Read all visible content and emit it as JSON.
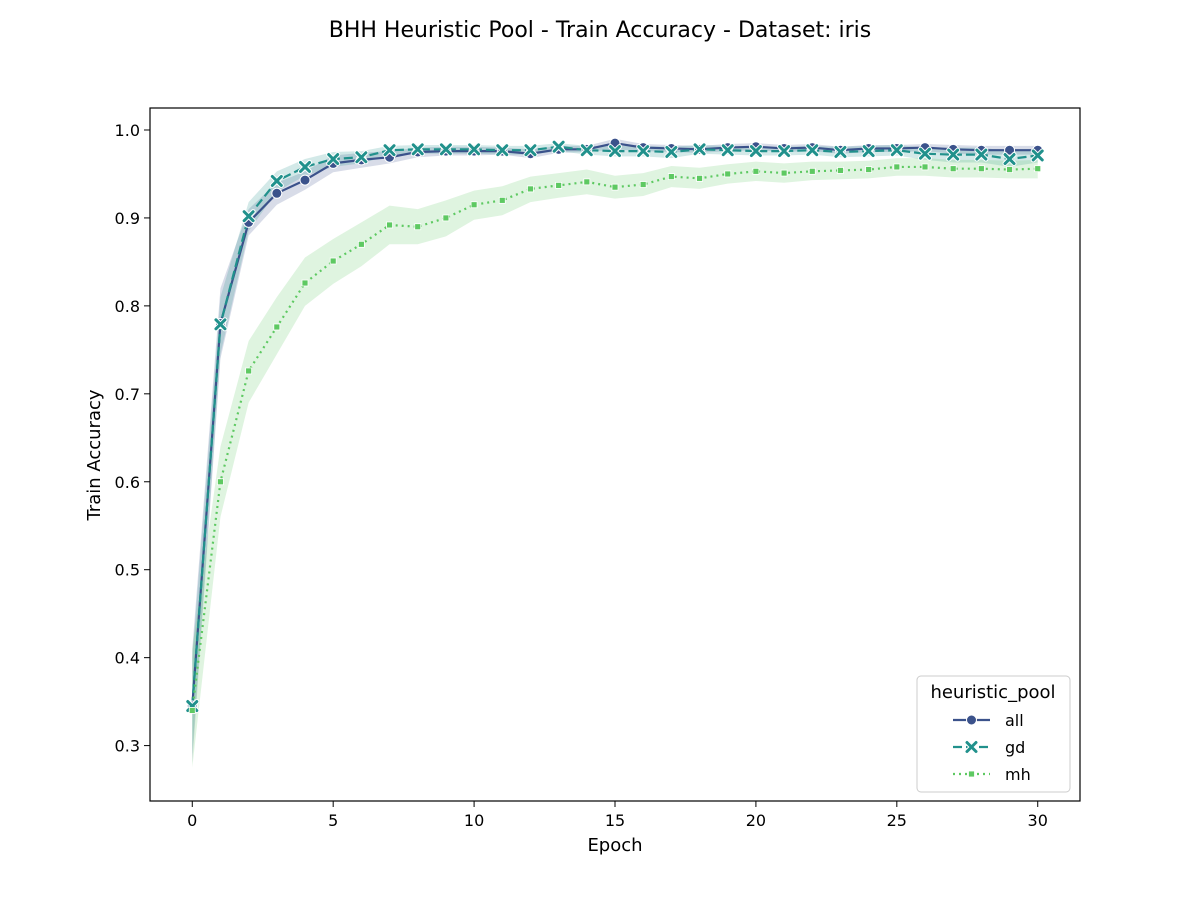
{
  "chart_data": {
    "type": "line",
    "title": "BHH Heuristic Pool - Train Accuracy - Dataset: iris",
    "xlabel": "Epoch",
    "ylabel": "Train Accuracy",
    "xlim": [
      -1.5,
      31.5
    ],
    "ylim": [
      0.237,
      1.025
    ],
    "xticks": [
      0,
      5,
      10,
      15,
      20,
      25,
      30
    ],
    "yticks": [
      0.3,
      0.4,
      0.5,
      0.6,
      0.7,
      0.8,
      0.9,
      1.0
    ],
    "xtick_labels": [
      "0",
      "5",
      "10",
      "15",
      "20",
      "25",
      "30"
    ],
    "ytick_labels": [
      "0.3",
      "0.4",
      "0.5",
      "0.6",
      "0.7",
      "0.8",
      "0.9",
      "1.0"
    ],
    "legend": {
      "title": "heuristic_pool",
      "position": "lower-right"
    },
    "x": [
      0,
      1,
      2,
      3,
      4,
      5,
      6,
      7,
      8,
      9,
      10,
      11,
      12,
      13,
      14,
      15,
      16,
      17,
      18,
      19,
      20,
      21,
      22,
      23,
      24,
      25,
      26,
      27,
      28,
      29,
      30
    ],
    "series": [
      {
        "name": "all",
        "color": "#3b528b",
        "dash": "solid",
        "marker": "circle",
        "values": [
          0.345,
          0.78,
          0.895,
          0.928,
          0.943,
          0.962,
          0.966,
          0.969,
          0.975,
          0.976,
          0.976,
          0.976,
          0.973,
          0.978,
          0.978,
          0.985,
          0.98,
          0.979,
          0.978,
          0.98,
          0.981,
          0.979,
          0.98,
          0.977,
          0.979,
          0.979,
          0.98,
          0.978,
          0.977,
          0.977,
          0.977
        ],
        "lower": [
          0.28,
          0.74,
          0.88,
          0.915,
          0.932,
          0.952,
          0.957,
          0.962,
          0.969,
          0.971,
          0.971,
          0.972,
          0.968,
          0.974,
          0.975,
          0.978,
          0.976,
          0.975,
          0.974,
          0.976,
          0.977,
          0.975,
          0.976,
          0.973,
          0.975,
          0.975,
          0.976,
          0.973,
          0.972,
          0.972,
          0.972
        ],
        "upper": [
          0.41,
          0.82,
          0.91,
          0.94,
          0.953,
          0.971,
          0.974,
          0.976,
          0.98,
          0.981,
          0.981,
          0.98,
          0.978,
          0.982,
          0.982,
          0.99,
          0.984,
          0.983,
          0.982,
          0.984,
          0.985,
          0.983,
          0.984,
          0.981,
          0.983,
          0.983,
          0.984,
          0.983,
          0.982,
          0.982,
          0.982
        ]
      },
      {
        "name": "gd",
        "color": "#21918c",
        "dash": "dashed",
        "marker": "x",
        "values": [
          0.345,
          0.779,
          0.902,
          0.942,
          0.958,
          0.967,
          0.969,
          0.977,
          0.978,
          0.978,
          0.978,
          0.977,
          0.977,
          0.981,
          0.977,
          0.976,
          0.976,
          0.975,
          0.978,
          0.977,
          0.976,
          0.976,
          0.977,
          0.975,
          0.976,
          0.977,
          0.973,
          0.972,
          0.972,
          0.967,
          0.971
        ],
        "lower": [
          0.29,
          0.745,
          0.885,
          0.93,
          0.948,
          0.958,
          0.962,
          0.971,
          0.973,
          0.973,
          0.973,
          0.972,
          0.972,
          0.976,
          0.972,
          0.97,
          0.97,
          0.968,
          0.973,
          0.972,
          0.971,
          0.971,
          0.972,
          0.969,
          0.97,
          0.971,
          0.966,
          0.963,
          0.963,
          0.958,
          0.963
        ],
        "upper": [
          0.4,
          0.81,
          0.918,
          0.953,
          0.967,
          0.975,
          0.976,
          0.982,
          0.983,
          0.983,
          0.983,
          0.982,
          0.982,
          0.985,
          0.982,
          0.982,
          0.982,
          0.981,
          0.983,
          0.982,
          0.981,
          0.981,
          0.982,
          0.981,
          0.982,
          0.983,
          0.98,
          0.98,
          0.98,
          0.976,
          0.979
        ]
      },
      {
        "name": "mh",
        "color": "#5ec962",
        "dash": "dotted",
        "marker": "square",
        "values": [
          0.34,
          0.6,
          0.726,
          0.776,
          0.826,
          0.851,
          0.87,
          0.892,
          0.89,
          0.9,
          0.915,
          0.92,
          0.933,
          0.937,
          0.941,
          0.935,
          0.938,
          0.947,
          0.945,
          0.95,
          0.953,
          0.951,
          0.953,
          0.954,
          0.955,
          0.958,
          0.958,
          0.956,
          0.956,
          0.955,
          0.956
        ],
        "lower": [
          0.275,
          0.56,
          0.69,
          0.745,
          0.8,
          0.825,
          0.845,
          0.87,
          0.87,
          0.879,
          0.898,
          0.903,
          0.918,
          0.923,
          0.927,
          0.922,
          0.925,
          0.935,
          0.933,
          0.939,
          0.942,
          0.94,
          0.943,
          0.944,
          0.945,
          0.948,
          0.948,
          0.946,
          0.946,
          0.945,
          0.945
        ],
        "upper": [
          0.41,
          0.64,
          0.76,
          0.81,
          0.855,
          0.876,
          0.895,
          0.914,
          0.91,
          0.92,
          0.931,
          0.936,
          0.947,
          0.951,
          0.955,
          0.948,
          0.951,
          0.959,
          0.957,
          0.961,
          0.964,
          0.962,
          0.964,
          0.964,
          0.965,
          0.968,
          0.968,
          0.966,
          0.966,
          0.965,
          0.966
        ]
      }
    ]
  }
}
